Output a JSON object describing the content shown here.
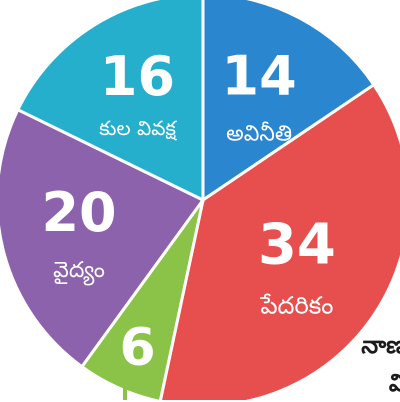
{
  "chart_data": {
    "type": "pie",
    "slices": [
      {
        "value": 14,
        "label": "అవినీతి",
        "color": "#2a86cf"
      },
      {
        "value": 34,
        "label": "పేదరికం",
        "color": "#e64f4d"
      },
      {
        "value": 6,
        "label": "",
        "color": "#8bc348"
      },
      {
        "value": 20,
        "label": "వైద్యం",
        "color": "#8d62ad"
      },
      {
        "value": 16,
        "label": "కుల వివక్ష",
        "color": "#26aecd"
      }
    ],
    "start_direction": "top",
    "clockwise": true
  },
  "side_text": {
    "line1": "నాణ",
    "line2": "వి"
  },
  "leader_color": "#8bc348"
}
